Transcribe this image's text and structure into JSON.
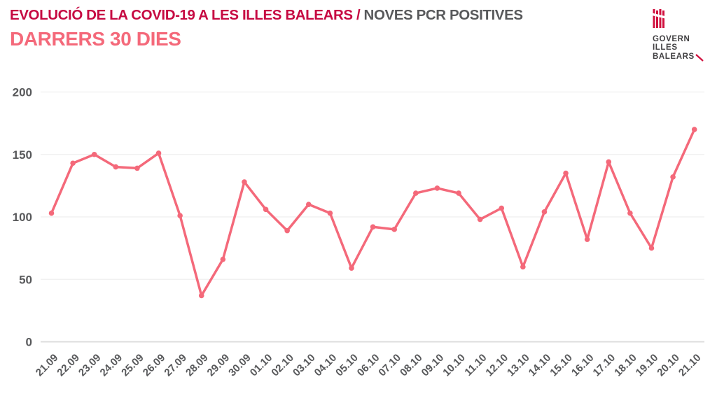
{
  "header": {
    "title_primary": "EVOLUCIÓ DE LA COVID-19 A LES ILLES BALEARS / ",
    "title_secondary": "NOVES PCR POSITIVES",
    "subtitle": "DARRERS 30 DIES"
  },
  "logo": {
    "emblem_icon": "govern-illes-balears-coat-of-arms",
    "lines": [
      "GOVERN",
      "ILLES",
      "BALEARS"
    ]
  },
  "colors": {
    "title_primary": "#c60942",
    "title_secondary": "#58595b",
    "subtitle": "#f4697a",
    "line": "#f4697a",
    "axis_text": "#58595b",
    "gridline": "#efefef",
    "baseline": "#dcdcdc",
    "logo_text": "#414042",
    "logo_emblem": "#d0103e"
  },
  "chart_data": {
    "type": "line",
    "title": "EVOLUCIÓ DE LA COVID-19 A LES ILLES BALEARS / NOVES PCR POSITIVES — DARRERS 30 DIES",
    "x": [
      "21.09",
      "22.09",
      "23.09",
      "24.09",
      "25.09",
      "26.09",
      "27.09",
      "28.09",
      "29.09",
      "30.09",
      "01.10",
      "02.10",
      "03.10",
      "04.10",
      "05.10",
      "06.10",
      "07.10",
      "08.10",
      "09.10",
      "10.10",
      "11.10",
      "12.10",
      "13.10",
      "14.10",
      "15.10",
      "16.10",
      "17.10",
      "18.10",
      "19.10",
      "20.10",
      "21.10"
    ],
    "series": [
      {
        "name": "Noves PCR positives",
        "values": [
          103,
          143,
          150,
          140,
          139,
          151,
          101,
          37,
          66,
          128,
          106,
          89,
          110,
          103,
          59,
          92,
          90,
          119,
          123,
          119,
          98,
          107,
          60,
          104,
          135,
          82,
          144,
          103,
          75,
          132,
          170
        ]
      }
    ],
    "xlabel": "",
    "ylabel": "",
    "ylim": [
      0,
      200
    ],
    "yticks": [
      0,
      50,
      100,
      150,
      200
    ],
    "grid": true,
    "legend": false,
    "marker": "circle"
  }
}
